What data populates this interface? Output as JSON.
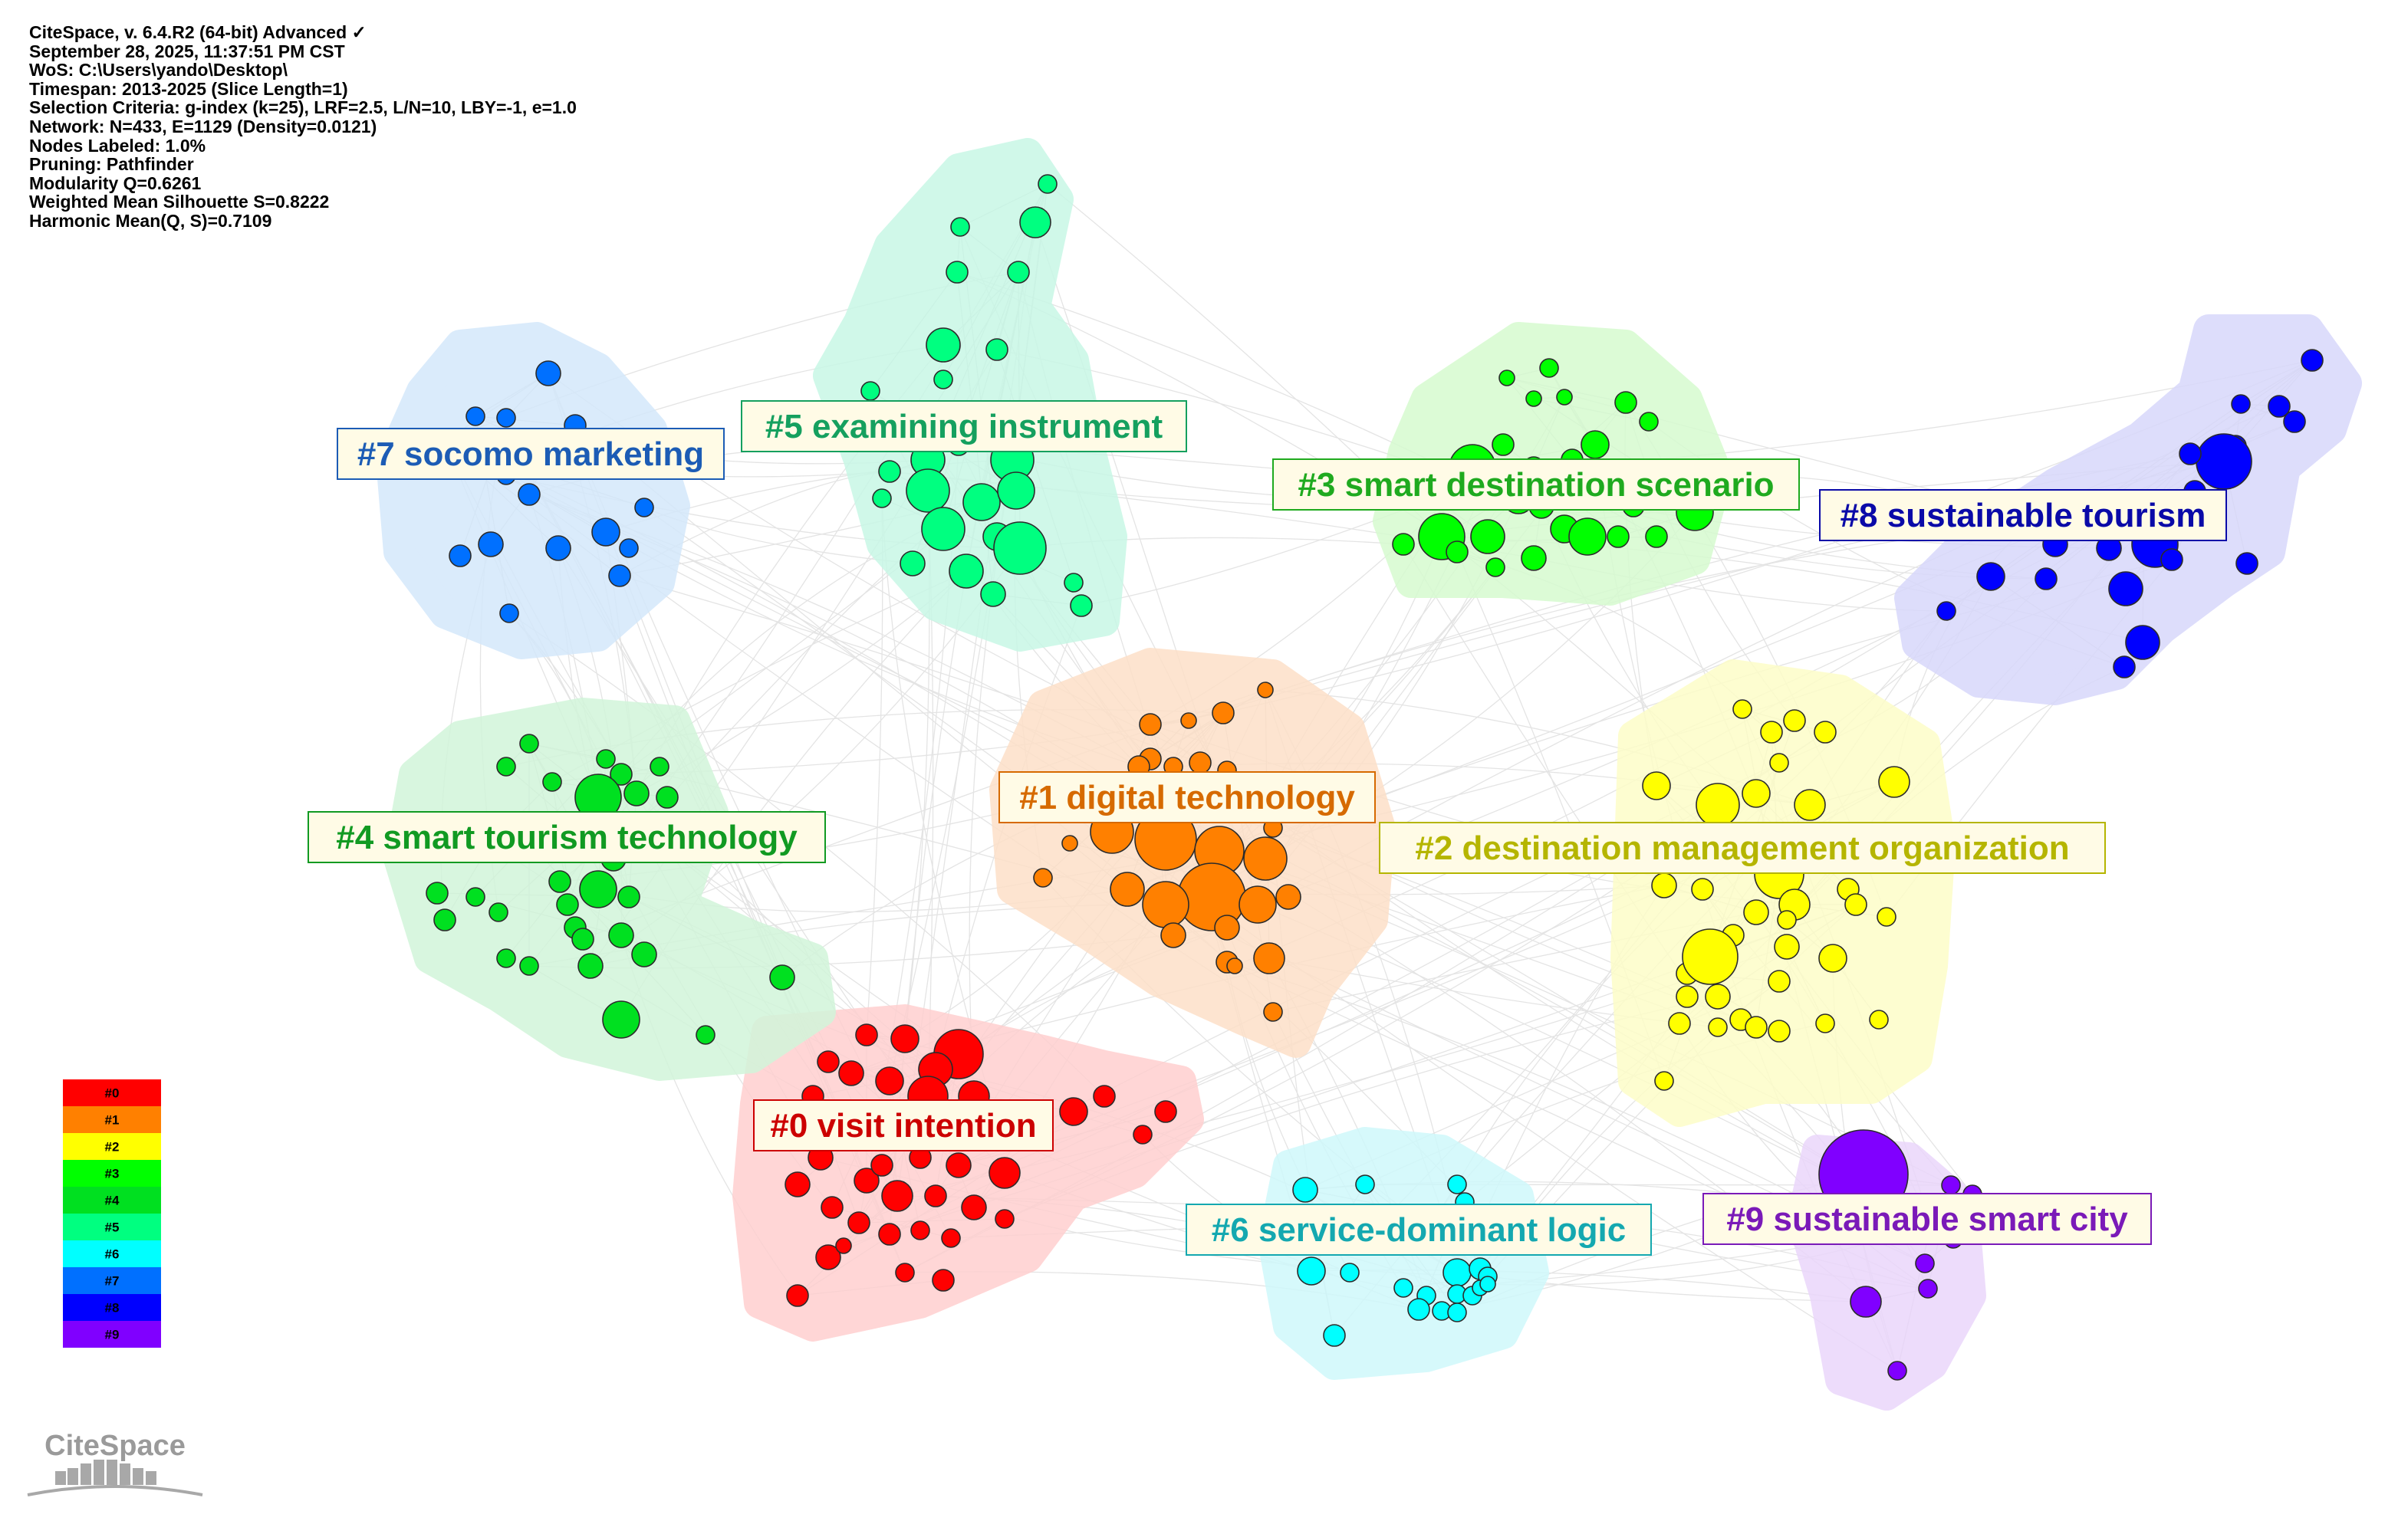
{
  "info_lines": [
    "CiteSpace, v. 6.4.R2 (64-bit) Advanced ✓",
    "September 28, 2025, 11:37:51 PM CST",
    "WoS: C:\\Users\\yando\\Desktop\\",
    "Timespan: 2013-2025 (Slice Length=1)",
    "Selection Criteria: g-index (k=25), LRF=2.5, L/N=10, LBY=-1, e=1.0",
    "Network: N=433, E=1129 (Density=0.0121)",
    "Nodes Labeled: 1.0%",
    "Pruning: Pathfinder",
    "Modularity Q=0.6261",
    "Weighted Mean Silhouette S=0.8222",
    "Harmonic Mean(Q, S)=0.7109"
  ],
  "clusters": [
    {
      "id": "0",
      "label": "#0 visit intention",
      "color": "#ff0000",
      "label_color": "#cc0000",
      "hull_color": "#ffd0d0"
    },
    {
      "id": "1",
      "label": "#1 digital technology",
      "color": "#ff8000",
      "label_color": "#d66a00",
      "hull_color": "#fde0c8"
    },
    {
      "id": "2",
      "label": "#2 destination management organization",
      "color": "#ffff00",
      "label_color": "#b5b500",
      "hull_color": "#fdfdc8"
    },
    {
      "id": "3",
      "label": "#3 smart destination scenario",
      "color": "#00ff00",
      "label_color": "#1faa1f",
      "hull_color": "#d6fbd0"
    },
    {
      "id": "4",
      "label": "#4 smart tourism technology",
      "color": "#00e020",
      "label_color": "#119a22",
      "hull_color": "#d2f5da"
    },
    {
      "id": "5",
      "label": "#5 examining instrument",
      "color": "#00ff80",
      "label_color": "#15a05f",
      "hull_color": "#c8f7e6"
    },
    {
      "id": "6",
      "label": "#6 service-dominant logic",
      "color": "#00ffff",
      "label_color": "#14a8b0",
      "hull_color": "#cff8fb"
    },
    {
      "id": "7",
      "label": "#7 socomo marketing",
      "color": "#0070ff",
      "label_color": "#1c5cb5",
      "hull_color": "#d4e8fb"
    },
    {
      "id": "8",
      "label": "#8 sustainable tourism",
      "color": "#0000ff",
      "label_color": "#0a0aa8",
      "hull_color": "#d8d8fb"
    },
    {
      "id": "9",
      "label": "#9 sustainable smart city",
      "color": "#8000ff",
      "label_color": "#7a1ab8",
      "hull_color": "#ead6fb"
    }
  ],
  "legend": {
    "entries": [
      "#0",
      "#1",
      "#2",
      "#3",
      "#4",
      "#5",
      "#6",
      "#7",
      "#8",
      "#9"
    ],
    "colors": [
      "#ff0000",
      "#ff8000",
      "#ffff00",
      "#00ff00",
      "#00e020",
      "#00ff80",
      "#00ffff",
      "#0070ff",
      "#0000ff",
      "#8000ff"
    ]
  },
  "logo": {
    "text": "CiteSpace"
  }
}
